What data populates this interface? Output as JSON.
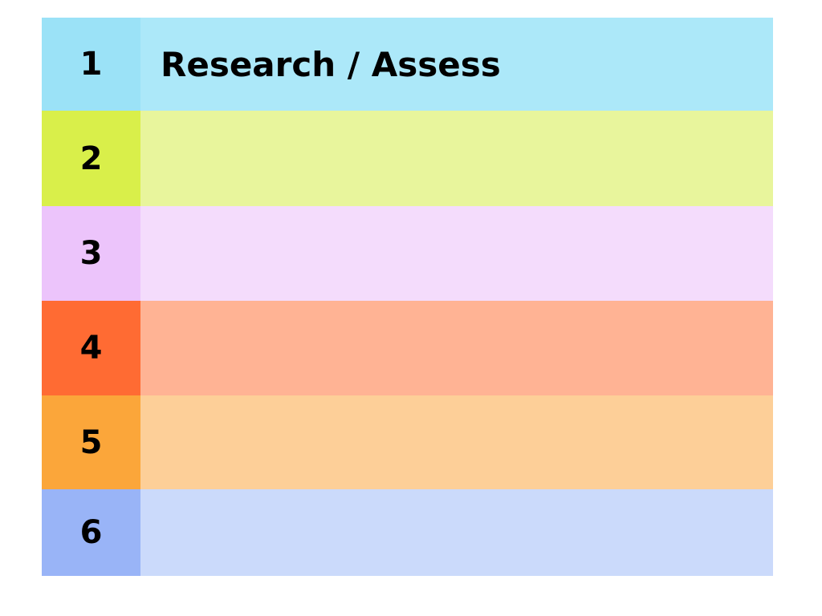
{
  "rows": [
    {
      "number": 1,
      "label": "Research / Assess"
    },
    {
      "number": 2
    },
    {
      "number": 3
    },
    {
      "number": 4
    },
    {
      "number": 5
    },
    {
      "number": 6
    }
  ]
}
